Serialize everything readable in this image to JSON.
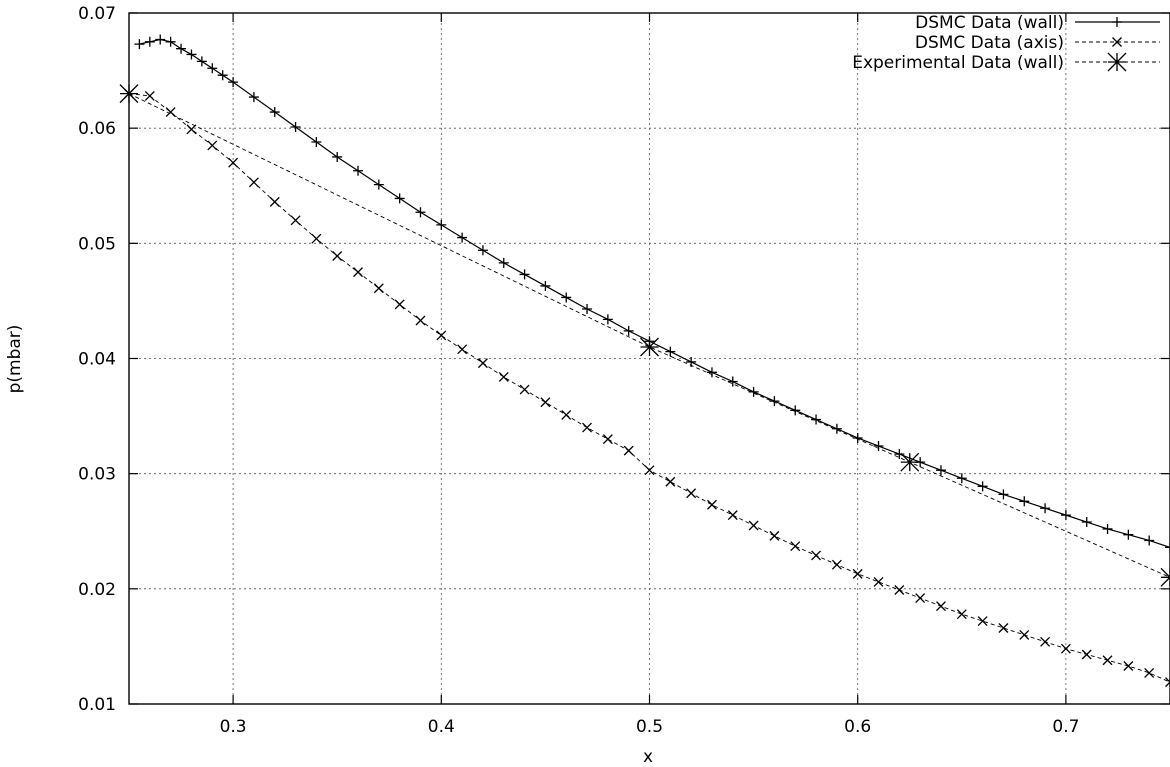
{
  "chart_data": {
    "type": "line",
    "title": "",
    "xlabel": "x",
    "ylabel": "p(mbar)",
    "xlim": [
      0.25,
      0.75
    ],
    "ylim": [
      0.01,
      0.07
    ],
    "xticks": [
      0.3,
      0.4,
      0.5,
      0.6,
      0.7
    ],
    "xtick_labels": [
      "0.3",
      "0.4",
      "0.5",
      "0.6",
      "0.7"
    ],
    "yticks": [
      0.01,
      0.02,
      0.03,
      0.04,
      0.05,
      0.06,
      0.07
    ],
    "ytick_labels": [
      "0.01",
      "0.02",
      "0.03",
      "0.04",
      "0.05",
      "0.06",
      "0.07"
    ],
    "grid": true,
    "legend_position": "top-right",
    "series": [
      {
        "name": "DSMC Data (wall)",
        "line_style": "solid",
        "marker": "plus",
        "x": [
          0.255,
          0.26,
          0.265,
          0.27,
          0.275,
          0.28,
          0.285,
          0.29,
          0.295,
          0.3,
          0.31,
          0.32,
          0.33,
          0.34,
          0.35,
          0.36,
          0.37,
          0.38,
          0.39,
          0.4,
          0.41,
          0.42,
          0.43,
          0.44,
          0.45,
          0.46,
          0.47,
          0.48,
          0.49,
          0.5,
          0.51,
          0.52,
          0.53,
          0.54,
          0.55,
          0.56,
          0.57,
          0.58,
          0.59,
          0.6,
          0.61,
          0.62,
          0.63,
          0.64,
          0.65,
          0.66,
          0.67,
          0.68,
          0.69,
          0.7,
          0.71,
          0.72,
          0.73,
          0.74,
          0.75
        ],
        "y": [
          0.0673,
          0.0675,
          0.0677,
          0.0675,
          0.0669,
          0.0664,
          0.0658,
          0.0652,
          0.0646,
          0.064,
          0.0627,
          0.0614,
          0.0601,
          0.0588,
          0.0575,
          0.0563,
          0.0551,
          0.0539,
          0.0527,
          0.0516,
          0.0505,
          0.0494,
          0.0483,
          0.0473,
          0.0463,
          0.0453,
          0.0443,
          0.0434,
          0.0424,
          0.0415,
          0.0406,
          0.0397,
          0.0388,
          0.038,
          0.0371,
          0.0363,
          0.0355,
          0.0347,
          0.0339,
          0.0331,
          0.0324,
          0.0317,
          0.031,
          0.0303,
          0.0296,
          0.0289,
          0.0282,
          0.0276,
          0.027,
          0.0264,
          0.0258,
          0.0252,
          0.0247,
          0.0242,
          0.0236
        ]
      },
      {
        "name": "DSMC Data (axis)",
        "line_style": "dashed",
        "marker": "cross",
        "x": [
          0.25,
          0.26,
          0.27,
          0.28,
          0.29,
          0.3,
          0.31,
          0.32,
          0.33,
          0.34,
          0.35,
          0.36,
          0.37,
          0.38,
          0.39,
          0.4,
          0.41,
          0.42,
          0.43,
          0.44,
          0.45,
          0.46,
          0.47,
          0.48,
          0.49,
          0.5,
          0.51,
          0.52,
          0.53,
          0.54,
          0.55,
          0.56,
          0.57,
          0.58,
          0.59,
          0.6,
          0.61,
          0.62,
          0.63,
          0.64,
          0.65,
          0.66,
          0.67,
          0.68,
          0.69,
          0.7,
          0.71,
          0.72,
          0.73,
          0.74,
          0.75
        ],
        "y": [
          0.063,
          0.0628,
          0.0614,
          0.0599,
          0.0585,
          0.057,
          0.0553,
          0.0536,
          0.052,
          0.0504,
          0.0489,
          0.0475,
          0.0461,
          0.0447,
          0.0433,
          0.042,
          0.0408,
          0.0396,
          0.0384,
          0.0373,
          0.0362,
          0.0351,
          0.034,
          0.033,
          0.032,
          0.0303,
          0.0293,
          0.0283,
          0.0273,
          0.0264,
          0.0255,
          0.0246,
          0.0237,
          0.0229,
          0.0221,
          0.0213,
          0.0206,
          0.0199,
          0.0192,
          0.0185,
          0.0178,
          0.0172,
          0.0166,
          0.016,
          0.0154,
          0.0148,
          0.0143,
          0.0138,
          0.0133,
          0.0127,
          0.0119
        ]
      },
      {
        "name": "Experimental Data (wall)",
        "line_style": "dashed",
        "marker": "star",
        "x": [
          0.25,
          0.5,
          0.625,
          0.75
        ],
        "y": [
          0.063,
          0.041,
          0.031,
          0.021
        ]
      }
    ]
  }
}
